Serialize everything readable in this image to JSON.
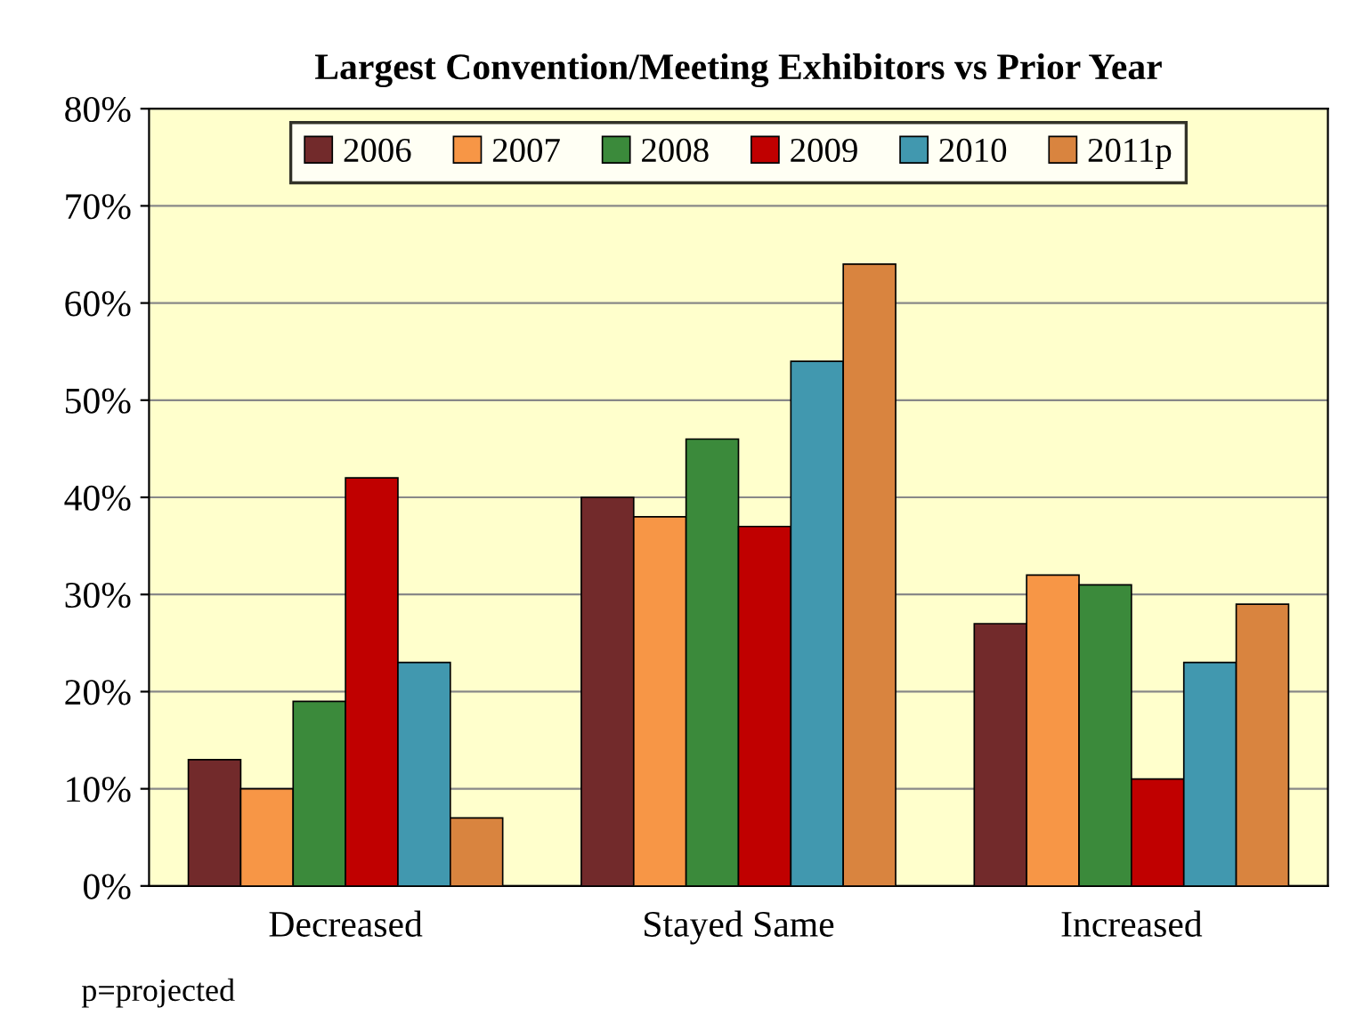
{
  "chart_data": {
    "type": "bar",
    "title": "Largest Convention/Meeting Exhibitors vs Prior Year",
    "categories": [
      "Decreased",
      "Stayed Same",
      "Increased"
    ],
    "series": [
      {
        "name": "2006",
        "color": "#722a2b",
        "values": [
          13,
          40,
          27
        ]
      },
      {
        "name": "2007",
        "color": "#f79646",
        "values": [
          10,
          38,
          32
        ]
      },
      {
        "name": "2008",
        "color": "#3b8a3b",
        "values": [
          19,
          46,
          31
        ]
      },
      {
        "name": "2009",
        "color": "#c00000",
        "values": [
          42,
          37,
          11
        ]
      },
      {
        "name": "2010",
        "color": "#4198af",
        "values": [
          23,
          54,
          23
        ]
      },
      {
        "name": "2011p",
        "color": "#d9843f",
        "values": [
          7,
          64,
          29
        ]
      }
    ],
    "ylim": [
      0,
      80
    ],
    "yticks": [
      {
        "value": 0,
        "label": "0%"
      },
      {
        "value": 10,
        "label": "10%"
      },
      {
        "value": 20,
        "label": "20%"
      },
      {
        "value": 30,
        "label": "30%"
      },
      {
        "value": 40,
        "label": "40%"
      },
      {
        "value": 50,
        "label": "50%"
      },
      {
        "value": 60,
        "label": "60%"
      },
      {
        "value": 70,
        "label": "70%"
      },
      {
        "value": 80,
        "label": "80%"
      }
    ],
    "grid": "y",
    "legend": "top",
    "annotations": [
      "p=projected"
    ]
  }
}
